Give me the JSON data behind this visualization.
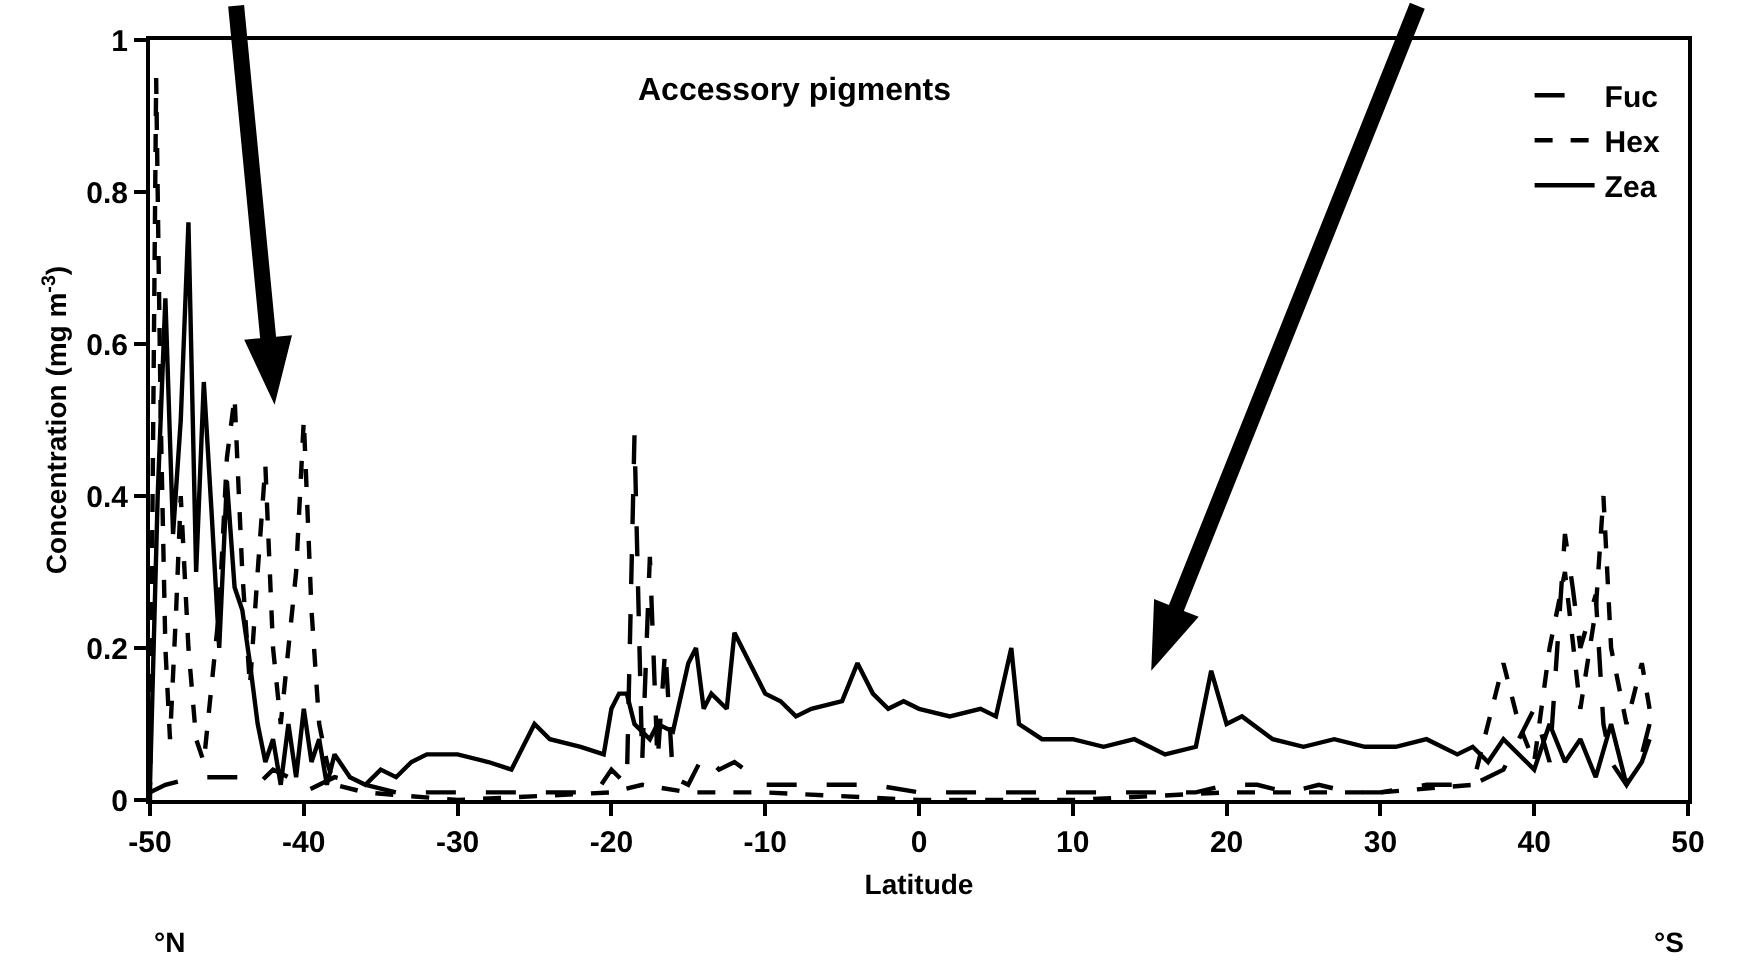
{
  "chart_data": {
    "type": "line",
    "title": "Accessory pigments",
    "xlabel": "Latitude",
    "ylabel": "Concentration (mg m$^{-3}$)",
    "annotations": [
      "°N",
      "°S"
    ],
    "xlim": [
      -50,
      50
    ],
    "xticks": [
      -50,
      -40,
      -30,
      -20,
      -10,
      0,
      10,
      20,
      30,
      40,
      50
    ],
    "ylim": [
      0,
      1
    ],
    "yticks": [
      0,
      0.2,
      0.4,
      0.6,
      0.8,
      1
    ],
    "grid": false,
    "legend": "top right",
    "marker": "none",
    "series": [
      {
        "name": "Fuc",
        "color": "#000000",
        "line_style": "dashed",
        "x": [
          -50,
          -49,
          -47,
          -45,
          -44,
          -43,
          -42,
          -41,
          -40,
          -38,
          -36,
          -34,
          -30,
          -25,
          -21,
          -20,
          -19,
          -18.5,
          -18,
          -17.5,
          -17,
          -16.5,
          -16,
          -15,
          -14,
          -13,
          -12,
          -10,
          -6,
          -3,
          0,
          5,
          10,
          15,
          18,
          20,
          22,
          24,
          26,
          28,
          30,
          33,
          36,
          38,
          40,
          41,
          42,
          42.5,
          43,
          44,
          44.5,
          45,
          46,
          47,
          47.5
        ],
        "values": [
          0.01,
          0.02,
          0.03,
          0.03,
          0.03,
          0.02,
          0.04,
          0.03,
          0.01,
          0.03,
          0.02,
          0.01,
          0.01,
          0.01,
          0.01,
          0.04,
          0.02,
          0.48,
          0.05,
          0.32,
          0.05,
          0.2,
          0.03,
          0.02,
          0.06,
          0.04,
          0.05,
          0.02,
          0.02,
          0.02,
          0.01,
          0.01,
          0.01,
          0.01,
          0.01,
          0.02,
          0.02,
          0.01,
          0.02,
          0.01,
          0.01,
          0.02,
          0.02,
          0.04,
          0.12,
          0.05,
          0.35,
          0.28,
          0.2,
          0.27,
          0.1,
          0.05,
          0.02,
          0.06,
          0.1
        ]
      },
      {
        "name": "Hex",
        "color": "#000000",
        "line_style": "dotted",
        "x": [
          -50,
          -49.6,
          -49.3,
          -49,
          -48.7,
          -48.3,
          -48,
          -47.5,
          -47,
          -46.5,
          -46,
          -45.5,
          -45,
          -44.5,
          -44,
          -43.5,
          -43,
          -42.5,
          -42,
          -41.5,
          -41,
          -40.5,
          -40,
          -39.5,
          -39,
          -38.5,
          -38,
          -36,
          -30,
          -20,
          -18,
          -15,
          -10,
          0,
          10,
          20,
          30,
          36,
          38,
          39,
          40,
          41,
          42,
          43,
          44,
          44.5,
          45,
          46,
          47,
          47.5
        ],
        "values": [
          0.0,
          0.95,
          0.5,
          0.2,
          0.08,
          0.25,
          0.4,
          0.2,
          0.08,
          0.05,
          0.15,
          0.25,
          0.45,
          0.53,
          0.3,
          0.15,
          0.3,
          0.44,
          0.2,
          0.1,
          0.2,
          0.3,
          0.5,
          0.25,
          0.1,
          0.05,
          0.02,
          0.01,
          0.0,
          0.01,
          0.02,
          0.01,
          0.01,
          0.0,
          0.0,
          0.01,
          0.01,
          0.02,
          0.18,
          0.1,
          0.05,
          0.2,
          0.3,
          0.12,
          0.25,
          0.4,
          0.2,
          0.1,
          0.18,
          0.12
        ]
      },
      {
        "name": "Zea",
        "color": "#000000",
        "line_style": "solid",
        "x": [
          -50,
          -49.5,
          -49,
          -48.5,
          -48,
          -47.5,
          -47,
          -46.5,
          -46,
          -45.5,
          -45,
          -44.5,
          -44,
          -43.5,
          -43,
          -42.5,
          -42,
          -41.5,
          -41,
          -40.5,
          -40,
          -39.5,
          -39,
          -38.5,
          -38,
          -37,
          -36,
          -35,
          -34,
          -33,
          -32,
          -30,
          -28,
          -26.5,
          -25,
          -24,
          -22,
          -20.5,
          -20,
          -19.5,
          -19,
          -18.5,
          -17.5,
          -17,
          -16,
          -15,
          -14.5,
          -14,
          -13.5,
          -12.5,
          -12,
          -11,
          -10,
          -9,
          -8,
          -7,
          -5,
          -4,
          -3,
          -2,
          -1,
          0,
          2,
          4,
          5,
          6,
          6.5,
          8,
          10,
          12,
          14,
          16,
          18,
          19,
          20,
          21,
          23,
          25,
          27,
          29,
          31,
          33,
          35,
          36,
          37,
          38,
          40,
          41,
          42,
          43,
          44,
          45,
          46,
          47,
          47.5
        ],
        "values": [
          0.02,
          0.4,
          0.66,
          0.35,
          0.5,
          0.76,
          0.3,
          0.55,
          0.38,
          0.2,
          0.42,
          0.28,
          0.25,
          0.18,
          0.1,
          0.05,
          0.08,
          0.02,
          0.1,
          0.03,
          0.12,
          0.05,
          0.08,
          0.02,
          0.06,
          0.03,
          0.02,
          0.04,
          0.03,
          0.05,
          0.06,
          0.06,
          0.05,
          0.04,
          0.1,
          0.08,
          0.07,
          0.06,
          0.12,
          0.14,
          0.14,
          0.1,
          0.08,
          0.1,
          0.09,
          0.18,
          0.2,
          0.12,
          0.14,
          0.12,
          0.22,
          0.18,
          0.14,
          0.13,
          0.11,
          0.12,
          0.13,
          0.18,
          0.14,
          0.12,
          0.13,
          0.12,
          0.11,
          0.12,
          0.11,
          0.2,
          0.1,
          0.08,
          0.08,
          0.07,
          0.08,
          0.06,
          0.07,
          0.17,
          0.1,
          0.11,
          0.08,
          0.07,
          0.08,
          0.07,
          0.07,
          0.08,
          0.06,
          0.07,
          0.05,
          0.08,
          0.04,
          0.1,
          0.05,
          0.08,
          0.03,
          0.1,
          0.02,
          0.05,
          0.08
        ]
      }
    ]
  }
}
